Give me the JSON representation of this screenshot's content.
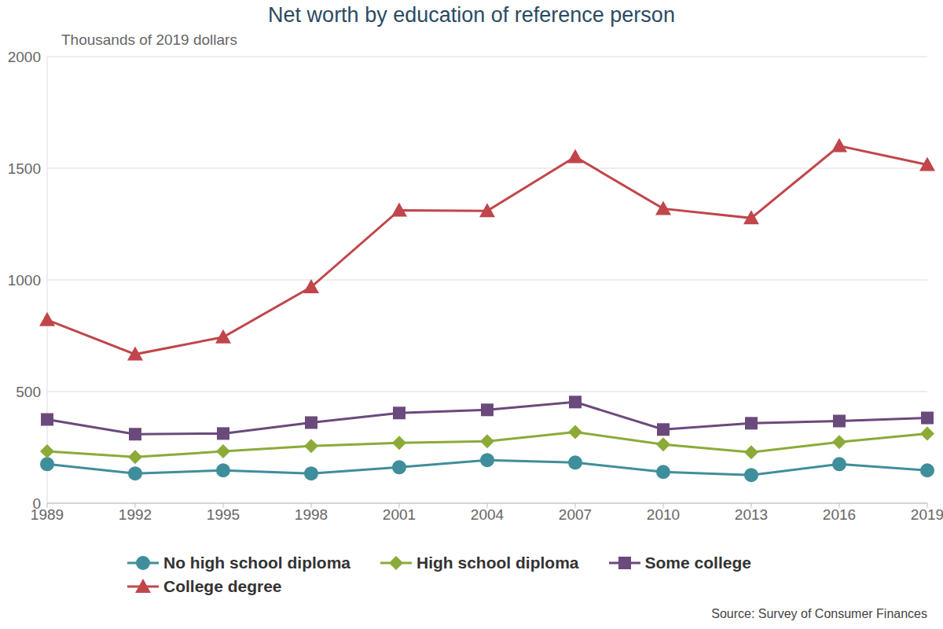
{
  "chart_data": {
    "type": "line",
    "title": "Net worth by education of reference person",
    "y_label": "Thousands of 2019 dollars",
    "source": "Source: Survey of Consumer Finances",
    "categories": [
      "1989",
      "1992",
      "1995",
      "1998",
      "2001",
      "2004",
      "2007",
      "2010",
      "2013",
      "2016",
      "2019"
    ],
    "series": [
      {
        "name": "No high school diploma",
        "color": "#3f8e9b",
        "marker": "circle",
        "values": [
          175,
          133,
          147,
          133,
          161,
          193,
          182,
          140,
          126,
          175,
          147
        ]
      },
      {
        "name": "High school diploma",
        "color": "#8caa38",
        "marker": "diamond",
        "values": [
          232,
          207,
          232,
          256,
          270,
          277,
          319,
          263,
          228,
          274,
          312
        ]
      },
      {
        "name": "Some college",
        "color": "#6a4a7c",
        "marker": "square",
        "values": [
          375,
          309,
          312,
          361,
          404,
          418,
          453,
          330,
          358,
          368,
          382
        ]
      },
      {
        "name": "College degree",
        "color": "#c0464b",
        "marker": "triangle",
        "values": [
          821,
          667,
          744,
          968,
          1312,
          1309,
          1551,
          1319,
          1277,
          1600,
          1516
        ]
      }
    ],
    "ylim": [
      0,
      2000
    ],
    "yticks": [
      0,
      500,
      1000,
      1500,
      2000
    ],
    "grid": true,
    "legend": "bottom"
  }
}
